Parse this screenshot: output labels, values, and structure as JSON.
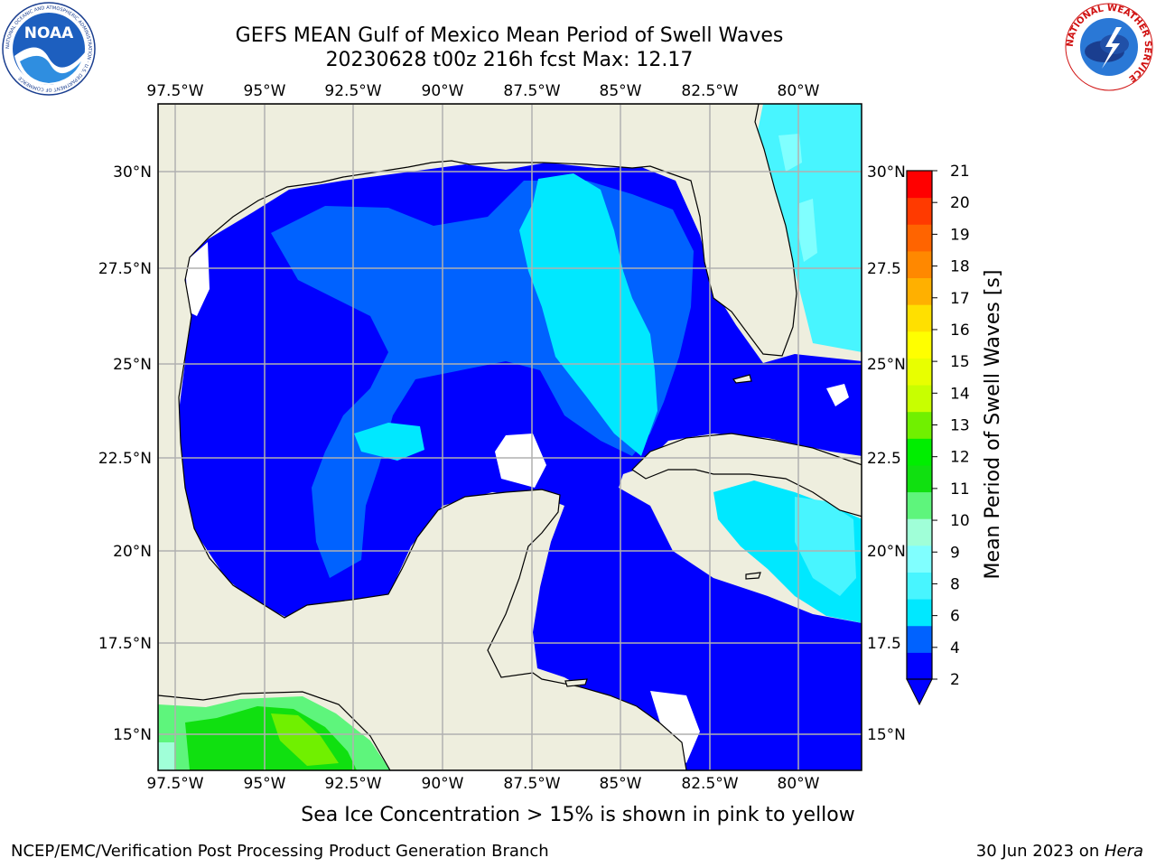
{
  "title": {
    "line1": "GEFS MEAN Gulf of Mexico Mean Period of Swell Waves",
    "line2": "20230628 t00z 216h fcst   Max: 12.17"
  },
  "map": {
    "lon_ticks": [
      "97.5°W",
      "95°W",
      "92.5°W",
      "90°W",
      "87.5°W",
      "85°W",
      "82.5°W",
      "80°W"
    ],
    "lat_ticks_left": [
      "30°N",
      "27.5°N",
      "25°N",
      "22.5°N",
      "20°N",
      "17.5°N",
      "15°N"
    ],
    "lat_ticks_right": [
      "30°N",
      "27.5",
      "25°N",
      "22.5",
      "20°N",
      "17.5",
      "15°N"
    ],
    "land_color": "#eeeede",
    "grid_color": "#b0b0b0"
  },
  "colorbar": {
    "label": "Mean Period of Swell Waves [s]",
    "ticks": [
      "21",
      "20",
      "19",
      "18",
      "17",
      "16",
      "15",
      "14",
      "13",
      "12",
      "11",
      "10",
      "9",
      "8",
      "6",
      "4",
      "2"
    ],
    "colors": [
      "#0000ff",
      "#0062ff",
      "#00e8ff",
      "#48f5ff",
      "#80ffff",
      "#a0ffd8",
      "#5ef57c",
      "#10e010",
      "#00ee00",
      "#70f000",
      "#c8ff00",
      "#e8ff00",
      "#ffff00",
      "#ffe000",
      "#ffb000",
      "#ff8800",
      "#ff6400",
      "#ff3a00",
      "#ff0000"
    ]
  },
  "logos": {
    "noaa_text": "NOAA",
    "noaa_ring": "NATIONAL OCEANIC AND ATMOSPHERIC ADMINISTRATION · U.S. DEPARTMENT OF COMMERCE",
    "nws_ring": "NATIONAL WEATHER SERVICE"
  },
  "footer": {
    "ice_note": "Sea Ice Concentration > 15% is shown in pink to yellow",
    "left": "NCEP/EMC/Verification Post Processing Product Generation Branch",
    "right_date": "30 Jun 2023 on ",
    "right_host": "Hera"
  }
}
